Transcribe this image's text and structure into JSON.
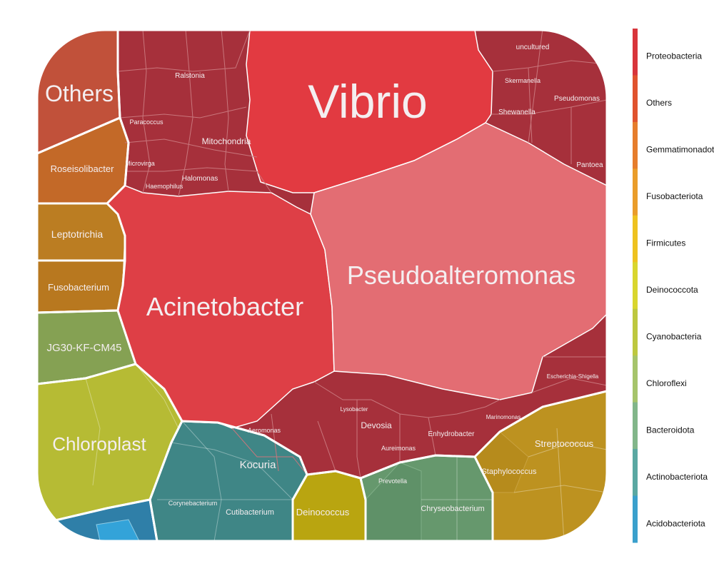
{
  "chart_data": {
    "type": "voronoi-treemap",
    "legend": {
      "placement": "right",
      "items": [
        {
          "label": "Proteobacteria",
          "color": "#d8353b"
        },
        {
          "label": "Others",
          "color": "#e0532e"
        },
        {
          "label": "Gemmatimonadota",
          "color": "#e67d2c"
        },
        {
          "label": "Fusobacteriota",
          "color": "#ea9d2a"
        },
        {
          "label": "Firmicutes",
          "color": "#eec21f"
        },
        {
          "label": "Deinococcota",
          "color": "#d9d62e"
        },
        {
          "label": "Cyanobacteria",
          "color": "#bdc83f"
        },
        {
          "label": "Chloroflexi",
          "color": "#a6c46b"
        },
        {
          "label": "Bacteroidota",
          "color": "#82b68a"
        },
        {
          "label": "Actinobacteriota",
          "color": "#5aa8a2"
        },
        {
          "label": "Acidobacteriota",
          "color": "#3aa0cc"
        }
      ]
    },
    "cells": [
      {
        "label": "Vibrio",
        "phylum": "Proteobacteria",
        "color": "#e23a41"
      },
      {
        "label": "Pseudoalteromonas",
        "phylum": "Proteobacteria",
        "color": "#e36d73"
      },
      {
        "label": "Acinetobacter",
        "phylum": "Proteobacteria",
        "color": "#de3f46"
      },
      {
        "label": "Others",
        "phylum": "Others",
        "color": "#c1513a"
      },
      {
        "label": "Roseisolibacter",
        "phylum": "Gemmatimonadota",
        "color": "#c36928"
      },
      {
        "label": "Leptotrichia",
        "phylum": "Fusobacteriota",
        "color": "#bb7d22"
      },
      {
        "label": "Fusobacterium",
        "phylum": "Fusobacteriota",
        "color": "#b8781f"
      },
      {
        "label": "JG30-KF-CM45",
        "phylum": "Chloroflexi",
        "color": "#85a153"
      },
      {
        "label": "Chloroplast",
        "phylum": "Cyanobacteria",
        "color": "#b6bb34"
      },
      {
        "label": "Kocuria",
        "phylum": "Actinobacteriota",
        "color": "#3f8a88"
      },
      {
        "label": "Cutibacterium",
        "phylum": "Actinobacteriota",
        "color": "#3f8686"
      },
      {
        "label": "Corynebacterium",
        "phylum": "Actinobacteriota",
        "color": "#468a86"
      },
      {
        "label": "Deinococcus",
        "phylum": "Deinococcota",
        "color": "#b9a510"
      },
      {
        "label": "Chryseobacterium",
        "phylum": "Bacteroidota",
        "color": "#66986d"
      },
      {
        "label": "Prevotella",
        "phylum": "Bacteroidota",
        "color": "#5f9168"
      },
      {
        "label": "Streptococcus",
        "phylum": "Firmicutes",
        "color": "#bd9220"
      },
      {
        "label": "Staphylococcus",
        "phylum": "Firmicutes",
        "color": "#b68b1c"
      },
      {
        "label": "Mitochondria",
        "phylum": "Proteobacteria",
        "color": "#a6303b"
      },
      {
        "label": "Ralstonia",
        "phylum": "Proteobacteria",
        "color": "#a6303b"
      },
      {
        "label": "Halomonas",
        "phylum": "Proteobacteria",
        "color": "#a6303b"
      },
      {
        "label": "Paracoccus",
        "phylum": "Proteobacteria",
        "color": "#a6303b"
      },
      {
        "label": "Microvirga",
        "phylum": "Proteobacteria",
        "color": "#a6303b"
      },
      {
        "label": "Haemophilus",
        "phylum": "Proteobacteria",
        "color": "#a6303b"
      },
      {
        "label": "Aeromonas",
        "phylum": "Proteobacteria",
        "color": "#a6303b"
      },
      {
        "label": "Devosia",
        "phylum": "Proteobacteria",
        "color": "#a6303b"
      },
      {
        "label": "Enhydrobacter",
        "phylum": "Proteobacteria",
        "color": "#a6303b"
      },
      {
        "label": "Aureimonas",
        "phylum": "Proteobacteria",
        "color": "#a6303b"
      },
      {
        "label": "Shewanella",
        "phylum": "Proteobacteria",
        "color": "#a6303b"
      },
      {
        "label": "Pseudomonas",
        "phylum": "Proteobacteria",
        "color": "#a6303b"
      },
      {
        "label": "Skermanella",
        "phylum": "Proteobacteria",
        "color": "#a6303b"
      },
      {
        "label": "uncultured",
        "phylum": "Proteobacteria",
        "color": "#a6303b"
      },
      {
        "label": "Pantoea",
        "phylum": "Proteobacteria",
        "color": "#a6303b"
      },
      {
        "label": "Escherichia-Shigella",
        "phylum": "Proteobacteria",
        "color": "#a6303b"
      },
      {
        "label": "Marinomonas",
        "phylum": "Proteobacteria",
        "color": "#a6303b"
      },
      {
        "label": "Lysobacter",
        "phylum": "Proteobacteria",
        "color": "#a6303b"
      }
    ]
  }
}
